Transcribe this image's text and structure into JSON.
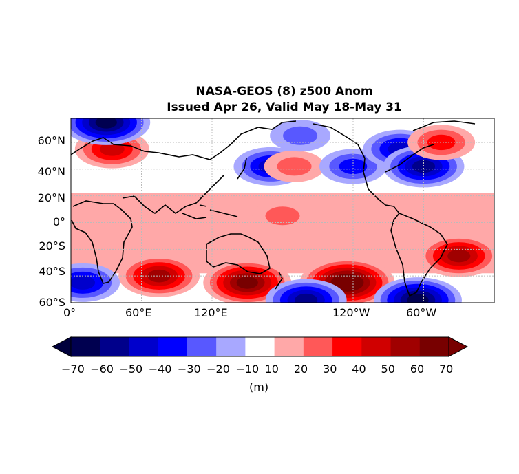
{
  "title": {
    "line1": "NASA-GEOS (8) z500 Anom",
    "line2": "Issued Apr 26, Valid May 18-May 31"
  },
  "axes": {
    "lat_labels": [
      "60°N",
      "40°N",
      "20°N",
      "0°",
      "20°S",
      "40°S",
      "60°S"
    ],
    "lon_labels": [
      "0°",
      "60°E",
      "120°E",
      "120°W",
      "60°W"
    ],
    "lat_range": [
      -60,
      78
    ],
    "lon_range": [
      0,
      360
    ],
    "gridlines": true
  },
  "colorbar": {
    "ticks": [
      "−70",
      "−60",
      "−50",
      "−40",
      "−30",
      "−20",
      "−10",
      "10",
      "20",
      "30",
      "40",
      "50",
      "60",
      "70"
    ],
    "units": "(m)",
    "colors": [
      "#000050",
      "#00008b",
      "#0000cc",
      "#0000ff",
      "#5858ff",
      "#a8a8ff",
      "#ffffff",
      "#ffa8a8",
      "#ff5858",
      "#ff0000",
      "#d00000",
      "#a00000",
      "#780000"
    ],
    "extend_low": "#00003c",
    "extend_high": "#780000"
  },
  "map_data": {
    "field": "500 hPa geopotential height anomaly",
    "anomalies": [
      {
        "region": "Europe / western Russia",
        "lat": 55,
        "lon": 35,
        "value": 40
      },
      {
        "region": "Arctic north of Scandinavia",
        "lat": 75,
        "lon": 30,
        "value": -60
      },
      {
        "region": "North Pacific (Kamchatka)",
        "lat": 42,
        "lon": 170,
        "value": -40
      },
      {
        "region": "Central North Pacific",
        "lat": 42,
        "lon": 190,
        "value": 20
      },
      {
        "region": "Alaska / Bering",
        "lat": 65,
        "lon": 195,
        "value": -20
      },
      {
        "region": "Western US",
        "lat": 42,
        "lon": 240,
        "value": -30
      },
      {
        "region": "Eastern Canada",
        "lat": 55,
        "lon": 280,
        "value": -40
      },
      {
        "region": "North Atlantic",
        "lat": 42,
        "lon": 300,
        "value": -50
      },
      {
        "region": "Greenland east",
        "lat": 60,
        "lon": 315,
        "value": 30
      },
      {
        "region": "Tropics band",
        "lat": 5,
        "lon": 180,
        "value": 20
      },
      {
        "region": "Australia south",
        "lat": -45,
        "lon": 150,
        "value": 60
      },
      {
        "region": "South Pacific",
        "lat": -45,
        "lon": 235,
        "value": 70
      },
      {
        "region": "South Atlantic",
        "lat": -25,
        "lon": 330,
        "value": 50
      },
      {
        "region": "Indian Ocean south",
        "lat": -40,
        "lon": 75,
        "value": 50
      },
      {
        "region": "South of Africa",
        "lat": -45,
        "lon": 10,
        "value": -40
      },
      {
        "region": "Drake Passage",
        "lat": -58,
        "lon": 295,
        "value": -60
      },
      {
        "region": "Southern Pacific small low",
        "lat": -58,
        "lon": 200,
        "value": -50
      }
    ]
  }
}
